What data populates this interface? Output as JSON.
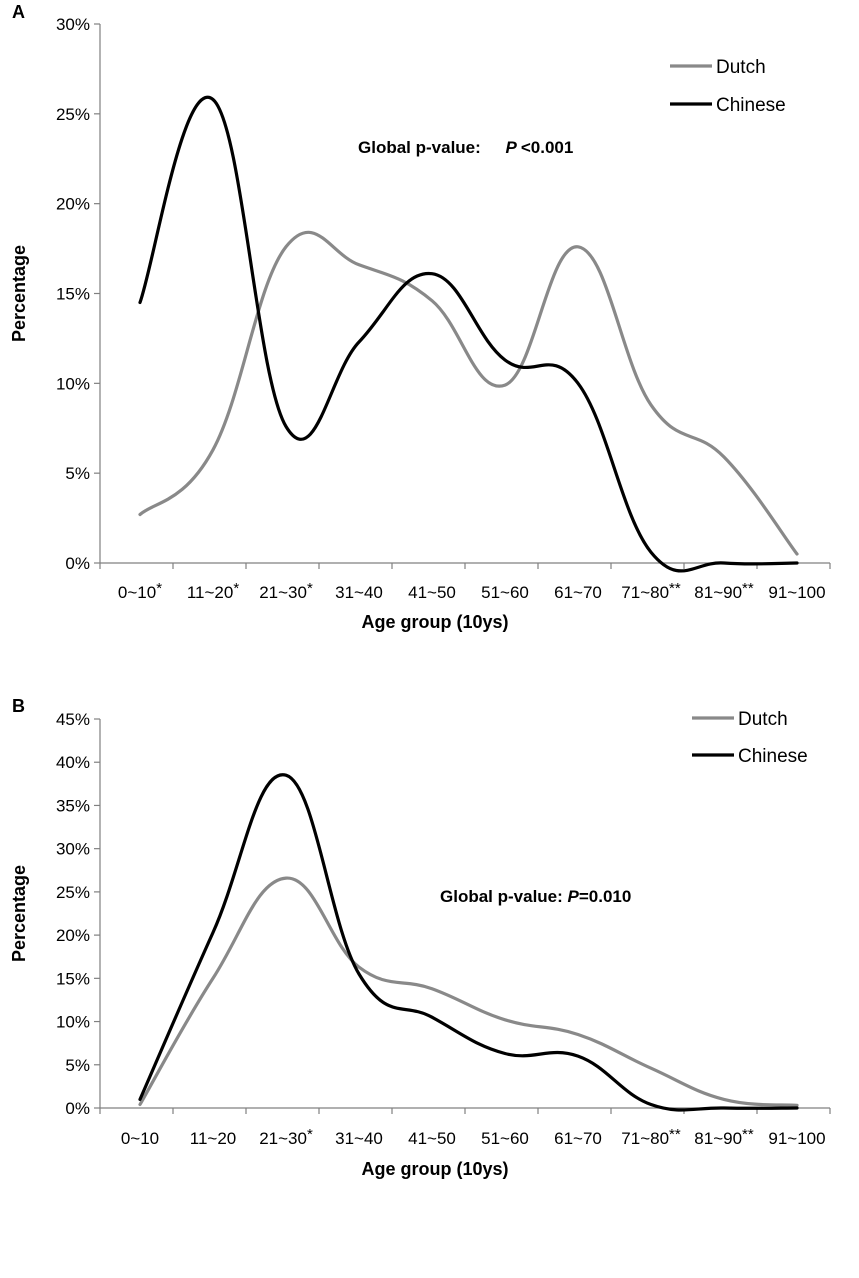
{
  "chart_data": [
    {
      "panel": "A",
      "type": "line",
      "categories": [
        "0~10*",
        "11~20*",
        "21~30*",
        "31~40",
        "41~50",
        "51~60",
        "61~70",
        "71~80**",
        "81~90**",
        "91~100"
      ],
      "xlabel": "Age group (10ys)",
      "ylabel": "Percentage",
      "ylim": [
        0,
        30
      ],
      "yticks": [
        "0%",
        "5%",
        "10%",
        "15%",
        "20%",
        "25%",
        "30%"
      ],
      "legend": "top-right",
      "annotation": {
        "prefix": "Global p-value:",
        "italic": "P",
        "suffix": "<0.001"
      },
      "series": [
        {
          "name": "Dutch",
          "color": "#898989",
          "values": [
            2.7,
            6.3,
            17.6,
            16.6,
            14.6,
            9.9,
            17.6,
            8.8,
            5.9,
            0.5
          ]
        },
        {
          "name": "Chinese",
          "color": "#000000",
          "values": [
            14.5,
            25.8,
            7.6,
            12.3,
            16.1,
            11.3,
            10.0,
            0.6,
            0.0,
            0.0
          ]
        }
      ]
    },
    {
      "panel": "B",
      "type": "line",
      "categories": [
        "0~10",
        "11~20",
        "21~30*",
        "31~40",
        "41~50",
        "51~60",
        "61~70",
        "71~80**",
        "81~90**",
        "91~100"
      ],
      "xlabel": "Age group (10ys)",
      "ylabel": "Percentage",
      "ylim": [
        0,
        45
      ],
      "yticks": [
        "0%",
        "5%",
        "10%",
        "15%",
        "20%",
        "25%",
        "30%",
        "35%",
        "40%",
        "45%"
      ],
      "legend": "top-right",
      "annotation": {
        "prefix": "Global p-value:",
        "italic": "P",
        "suffix": "=0.010"
      },
      "series": [
        {
          "name": "Dutch",
          "color": "#898989",
          "values": [
            0.4,
            15.0,
            26.6,
            16.3,
            13.8,
            10.2,
            8.5,
            4.6,
            1.0,
            0.3
          ]
        },
        {
          "name": "Chinese",
          "color": "#000000",
          "values": [
            1.0,
            20.3,
            38.5,
            15.5,
            10.5,
            6.3,
            6.0,
            0.4,
            0.0,
            0.0
          ]
        }
      ]
    }
  ]
}
